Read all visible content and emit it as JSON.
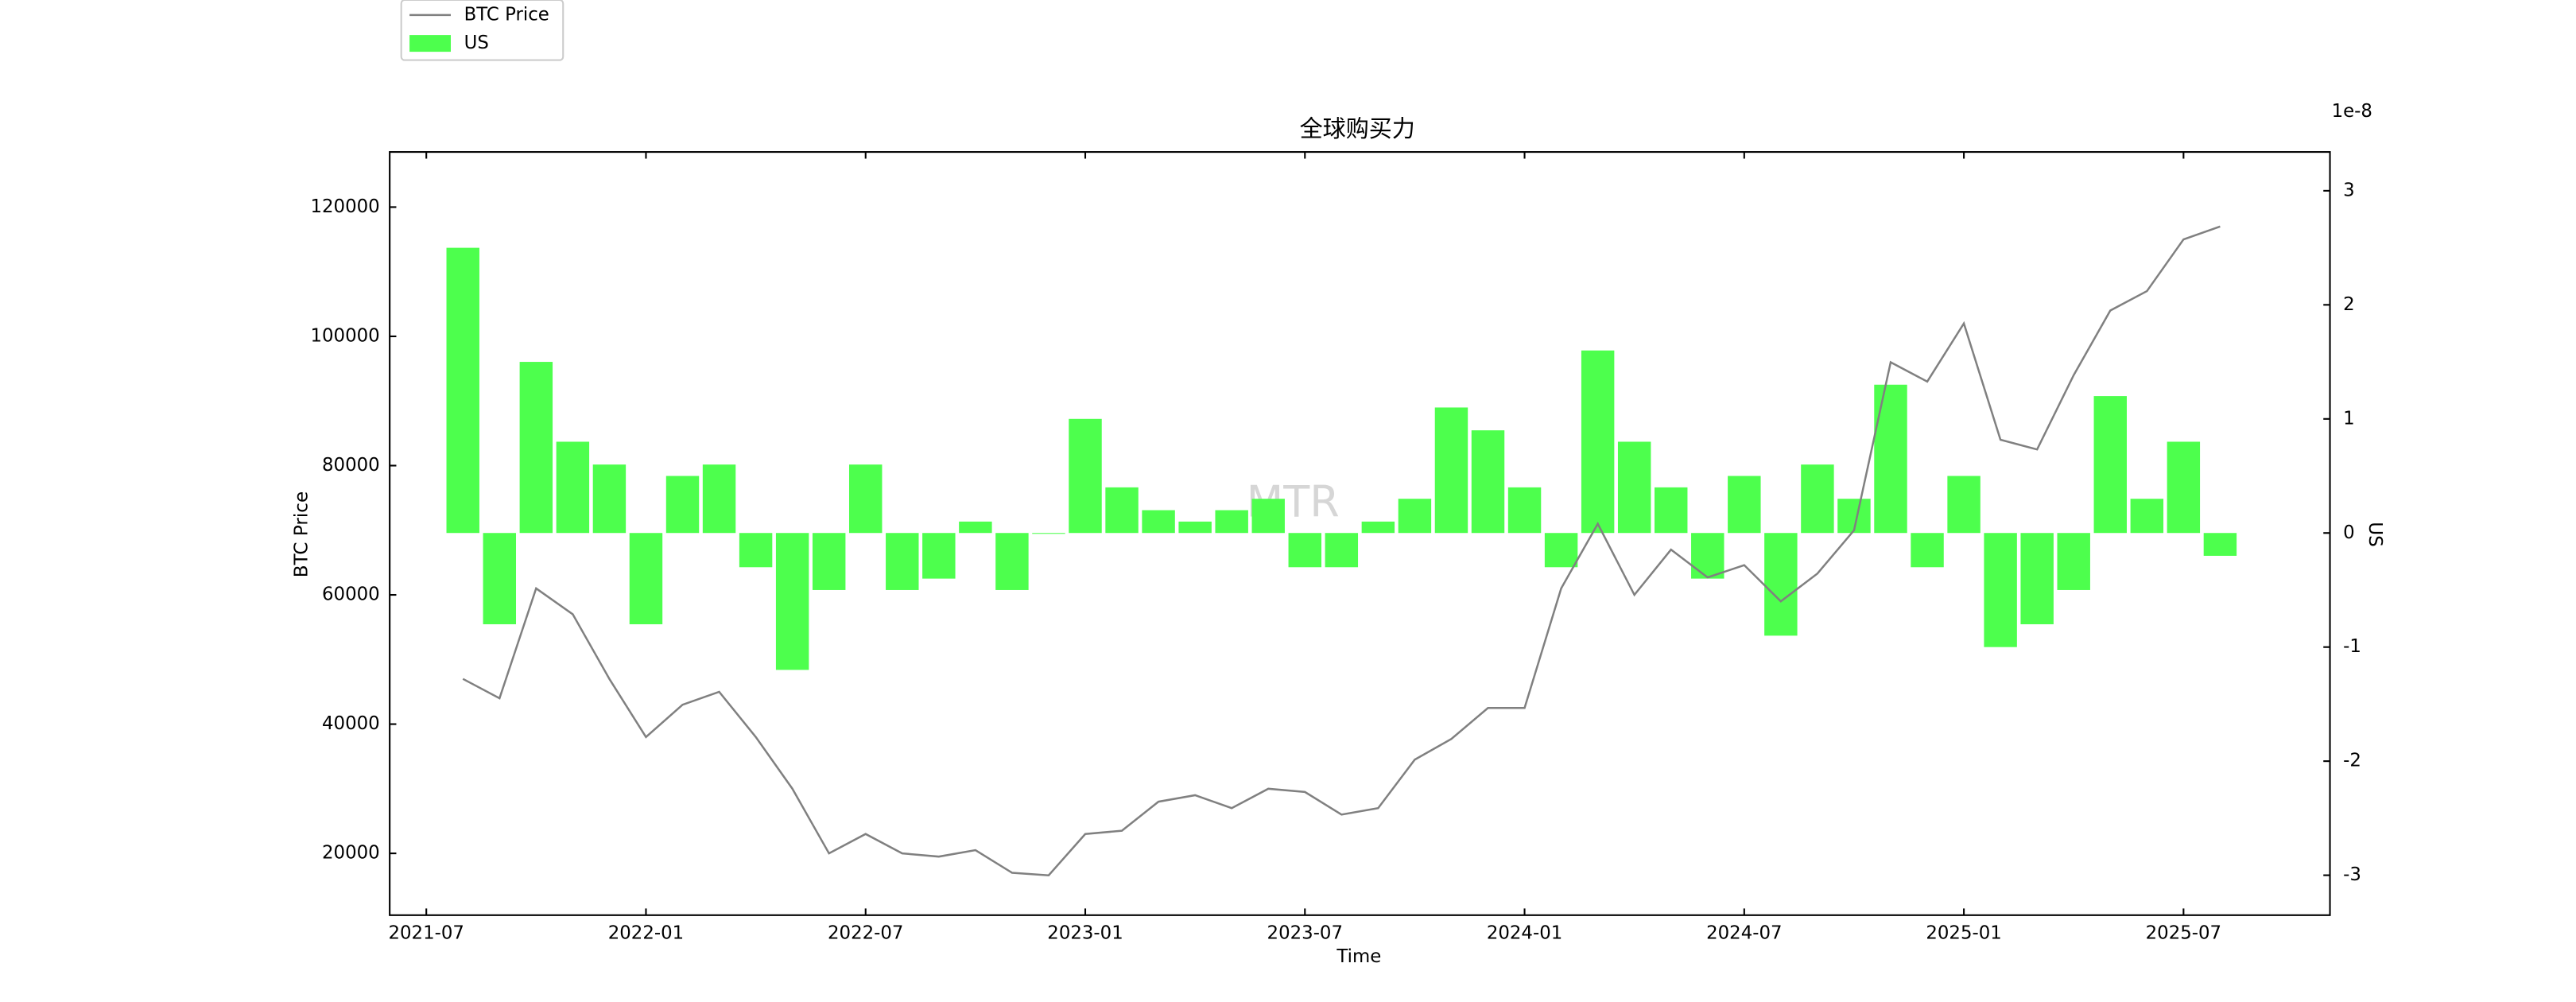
{
  "chart_data": {
    "type": "bar_line",
    "title": "全球购买力",
    "xlabel": "Time",
    "ylabel": "BTC Price",
    "y2label": "US",
    "y2_offset_text": "1e-8",
    "watermark": "MTR",
    "legend": "upper left outside",
    "x": [
      "2021-08",
      "2021-09",
      "2021-10",
      "2021-11",
      "2021-12",
      "2022-01",
      "2022-02",
      "2022-03",
      "2022-04",
      "2022-05",
      "2022-06",
      "2022-07",
      "2022-08",
      "2022-09",
      "2022-10",
      "2022-11",
      "2022-12",
      "2023-01",
      "2023-02",
      "2023-03",
      "2023-04",
      "2023-05",
      "2023-06",
      "2023-07",
      "2023-08",
      "2023-09",
      "2023-10",
      "2023-11",
      "2023-12",
      "2024-01",
      "2024-02",
      "2024-03",
      "2024-04",
      "2024-05",
      "2024-06",
      "2024-07",
      "2024-08",
      "2024-09",
      "2024-10",
      "2024-11",
      "2024-12",
      "2025-01",
      "2025-02",
      "2025-03",
      "2025-04",
      "2025-05",
      "2025-06",
      "2025-07",
      "2025-08"
    ],
    "series": [
      {
        "name": "BTC Price",
        "type": "line",
        "color": "#808080",
        "values": [
          47000,
          44000,
          61000,
          57000,
          47000,
          38000,
          43000,
          45000,
          38000,
          30000,
          20000,
          23000,
          20000,
          19500,
          20500,
          17000,
          16600,
          23000,
          23500,
          28000,
          29000,
          27000,
          30000,
          29500,
          26000,
          27000,
          34500,
          37700,
          42500,
          42500,
          61000,
          71000,
          60000,
          67000,
          62700,
          64600,
          59000,
          63300,
          70000,
          96000,
          93000,
          102000,
          84000,
          82500,
          94000,
          104000,
          107000,
          115000,
          117000
        ]
      },
      {
        "name": "US",
        "type": "bar",
        "axis": "y2",
        "color": "#4dff4d",
        "values": [
          2.5,
          -0.8,
          1.5,
          0.8,
          0.6,
          -0.8,
          0.5,
          0.6,
          -0.3,
          -1.2,
          -0.5,
          0.6,
          -0.5,
          -0.4,
          0.1,
          -0.5,
          0.0,
          1.0,
          0.4,
          0.2,
          0.1,
          0.2,
          0.3,
          -0.3,
          -0.3,
          0.1,
          0.3,
          1.1,
          0.9,
          0.4,
          -0.3,
          1.6,
          0.8,
          0.4,
          -0.4,
          0.5,
          -0.9,
          0.6,
          0.3,
          1.3,
          -0.3,
          0.5,
          -1.0,
          -0.8,
          -0.5,
          1.2,
          0.3,
          0.8,
          -0.2
        ]
      }
    ],
    "xlim": [
      "2021-06",
      "2025-11"
    ],
    "xticks": [
      "2021-07",
      "2022-01",
      "2022-07",
      "2023-01",
      "2023-07",
      "2024-01",
      "2024-07",
      "2025-01",
      "2025-07"
    ],
    "ylim": [
      10440,
      128530
    ],
    "yticks": [
      20000,
      40000,
      60000,
      80000,
      100000,
      120000
    ],
    "y2lim": [
      -3.35,
      3.34
    ],
    "y2ticks": [
      -3,
      -2,
      -1,
      0,
      1,
      2,
      3
    ]
  }
}
